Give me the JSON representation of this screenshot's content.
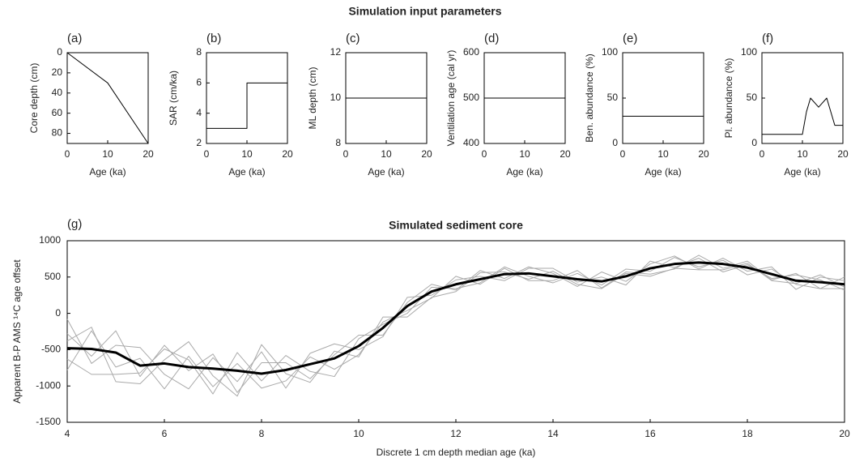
{
  "title": "Simulation input parameters",
  "chart_data": [
    {
      "type": "line",
      "label": "(a)",
      "xlabel": "Age (ka)",
      "ylabel": "Core depth (cm)",
      "xlim": [
        0,
        20
      ],
      "xticks": [
        0,
        10,
        20
      ],
      "ylim": [
        0,
        90
      ],
      "y_reversed": true,
      "yticks": [
        0,
        20,
        40,
        60,
        80
      ],
      "series": [
        {
          "color": "#000000",
          "width": 1,
          "x": [
            0,
            10,
            20
          ],
          "values": [
            0,
            30,
            90
          ]
        }
      ]
    },
    {
      "type": "line",
      "label": "(b)",
      "xlabel": "Age (ka)",
      "ylabel": "SAR (cm/ka)",
      "xlim": [
        0,
        20
      ],
      "xticks": [
        0,
        10,
        20
      ],
      "ylim": [
        2,
        8
      ],
      "yticks": [
        2,
        4,
        6,
        8
      ],
      "series": [
        {
          "color": "#000000",
          "width": 1,
          "x": [
            0,
            10,
            10,
            20
          ],
          "values": [
            3,
            3,
            6,
            6
          ]
        }
      ]
    },
    {
      "type": "line",
      "label": "(c)",
      "xlabel": "Age (ka)",
      "ylabel": "ML depth (cm)",
      "xlim": [
        0,
        20
      ],
      "xticks": [
        0,
        10,
        20
      ],
      "ylim": [
        8,
        12
      ],
      "yticks": [
        8,
        10,
        12
      ],
      "series": [
        {
          "color": "#000000",
          "width": 1,
          "x": [
            0,
            20
          ],
          "values": [
            10,
            10
          ]
        }
      ]
    },
    {
      "type": "line",
      "label": "(d)",
      "xlabel": "Age (ka)",
      "ylabel": "Ventilation age (cal yr)",
      "xlim": [
        0,
        20
      ],
      "xticks": [
        0,
        10,
        20
      ],
      "ylim": [
        400,
        600
      ],
      "yticks": [
        400,
        500,
        600
      ],
      "series": [
        {
          "color": "#000000",
          "width": 1,
          "x": [
            0,
            20
          ],
          "values": [
            500,
            500
          ]
        }
      ]
    },
    {
      "type": "line",
      "label": "(e)",
      "xlabel": "Age (ka)",
      "ylabel": "Ben. abundance (%)",
      "xlim": [
        0,
        20
      ],
      "xticks": [
        0,
        10,
        20
      ],
      "ylim": [
        0,
        100
      ],
      "yticks": [
        0,
        50,
        100
      ],
      "series": [
        {
          "color": "#000000",
          "width": 1,
          "x": [
            0,
            20
          ],
          "values": [
            30,
            30
          ]
        }
      ]
    },
    {
      "type": "line",
      "label": "(f)",
      "xlabel": "Age (ka)",
      "ylabel": "Pl. abundance (%)",
      "xlim": [
        0,
        20
      ],
      "xticks": [
        0,
        10,
        20
      ],
      "ylim": [
        0,
        100
      ],
      "yticks": [
        0,
        50,
        100
      ],
      "series": [
        {
          "color": "#000000",
          "width": 1,
          "x": [
            0,
            10,
            11,
            12,
            14,
            16,
            18,
            20
          ],
          "values": [
            10,
            10,
            35,
            50,
            40,
            50,
            20,
            20
          ]
        }
      ]
    },
    {
      "type": "line",
      "label": "(g)",
      "title": "Simulated sediment core",
      "xlabel": "Discrete 1 cm depth median age (ka)",
      "ylabel": "Apparent B-P AMS ¹⁴C age offset",
      "xlim": [
        4,
        20
      ],
      "xticks": [
        4,
        6,
        8,
        10,
        12,
        14,
        16,
        18,
        20
      ],
      "ylim": [
        -1500,
        1000
      ],
      "yticks": [
        -1500,
        -1000,
        -500,
        0,
        500,
        1000
      ],
      "x": [
        4,
        4.5,
        5,
        5.5,
        6,
        6.5,
        7,
        7.5,
        8,
        8.5,
        9,
        9.5,
        10,
        10.5,
        11,
        11.5,
        12,
        12.5,
        13,
        13.5,
        14,
        14.5,
        15,
        15.5,
        16,
        16.5,
        17,
        17.5,
        18,
        18.5,
        19,
        19.5,
        20
      ],
      "series": [
        {
          "color": "#aaaaaa",
          "width": 1,
          "values": [
            -280,
            -590,
            -240,
            -870,
            -440,
            -790,
            -560,
            -1090,
            -680,
            -680,
            -900,
            -570,
            -300,
            -300,
            150,
            400,
            320,
            590,
            480,
            640,
            550,
            370,
            570,
            440,
            680,
            790,
            610,
            760,
            580,
            640,
            330,
            500,
            450
          ]
        },
        {
          "color": "#aaaaaa",
          "width": 1,
          "values": [
            -780,
            -240,
            -740,
            -620,
            -1040,
            -590,
            -1010,
            -690,
            -1030,
            -930,
            -600,
            -770,
            -570,
            -120,
            40,
            210,
            510,
            400,
            620,
            450,
            450,
            590,
            350,
            570,
            540,
            610,
            800,
            620,
            720,
            460,
            550,
            340,
            340
          ]
        },
        {
          "color": "#aaaaaa",
          "width": 1,
          "values": [
            -80,
            -690,
            -440,
            -470,
            -840,
            -1040,
            -610,
            -940,
            -530,
            -1030,
            -550,
            -420,
            -500,
            -320,
            220,
            250,
            460,
            510,
            450,
            620,
            620,
            430,
            500,
            390,
            720,
            630,
            760,
            570,
            670,
            480,
            530,
            460,
            320
          ]
        },
        {
          "color": "#aaaaaa",
          "width": 1,
          "values": [
            -630,
            -840,
            -840,
            -820,
            -490,
            -640,
            -1110,
            -540,
            -930,
            -580,
            -800,
            -870,
            -350,
            -150,
            0,
            360,
            340,
            420,
            640,
            510,
            420,
            550,
            390,
            610,
            580,
            770,
            640,
            730,
            530,
            610,
            400,
            340,
            500
          ]
        },
        {
          "color": "#aaaaaa",
          "width": 1,
          "values": [
            -380,
            -190,
            -940,
            -970,
            -640,
            -390,
            -860,
            -1140,
            -430,
            -830,
            -950,
            -520,
            -600,
            -50,
            -50,
            220,
            300,
            560,
            570,
            470,
            580,
            400,
            340,
            550,
            510,
            620,
            600,
            600,
            690,
            450,
            410,
            530,
            360
          ]
        },
        {
          "color": "#000000",
          "width": 3,
          "values": [
            -480,
            -490,
            -540,
            -720,
            -690,
            -740,
            -760,
            -790,
            -830,
            -780,
            -700,
            -620,
            -450,
            -200,
            100,
            300,
            400,
            470,
            540,
            550,
            510,
            470,
            440,
            510,
            620,
            680,
            700,
            680,
            630,
            540,
            450,
            430,
            400
          ]
        }
      ]
    }
  ]
}
